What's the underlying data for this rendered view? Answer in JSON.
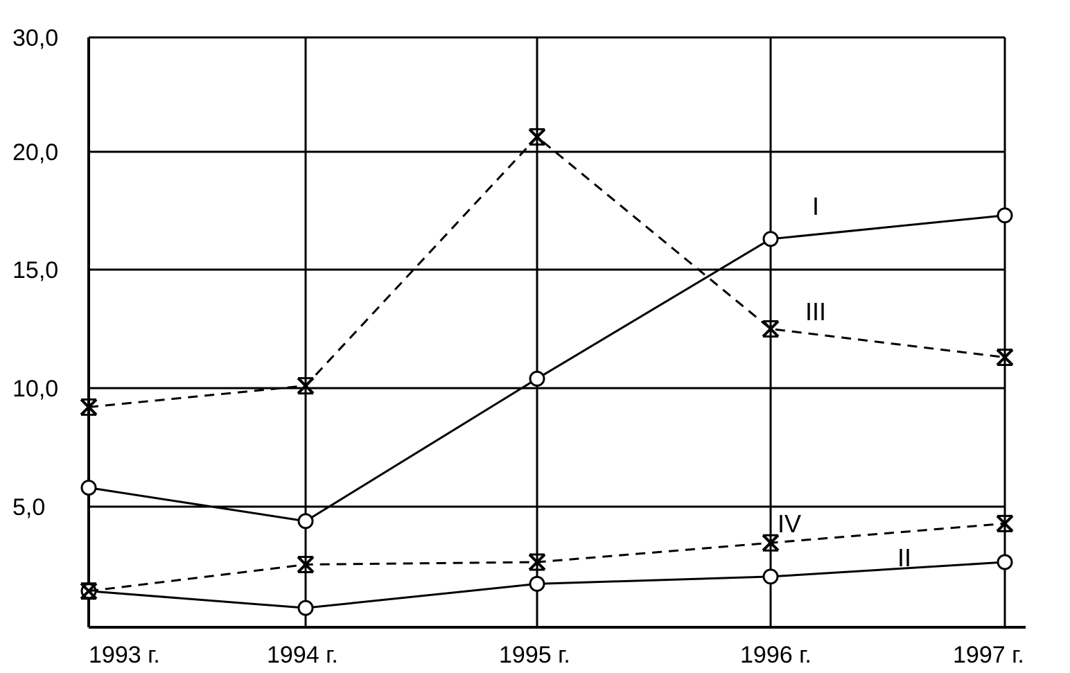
{
  "chart_data": {
    "type": "line",
    "title": "",
    "xlabel": "",
    "ylabel": "",
    "categories": [
      "1993 г.",
      "1994 г.",
      "1995 г.",
      "1996 г.",
      "1997 г."
    ],
    "y_ticks": [
      "5,0",
      "10,0",
      "15,0",
      "20,0",
      "30,0"
    ],
    "grid": true,
    "legend": "inline labels near lines",
    "series": [
      {
        "name": "I",
        "style": "solid",
        "marker": "circle",
        "values": [
          5.8,
          4.4,
          10.4,
          16.3,
          17.3
        ]
      },
      {
        "name": "II",
        "style": "solid",
        "marker": "circle",
        "values": [
          1.5,
          0.8,
          1.8,
          2.1,
          2.7
        ]
      },
      {
        "name": "III",
        "style": "dashed",
        "marker": "x",
        "values": [
          9.2,
          10.1,
          21.3,
          12.5,
          11.3
        ]
      },
      {
        "name": "IV",
        "style": "dashed",
        "marker": "x",
        "values": [
          1.5,
          2.6,
          2.7,
          3.5,
          4.3
        ]
      }
    ]
  }
}
